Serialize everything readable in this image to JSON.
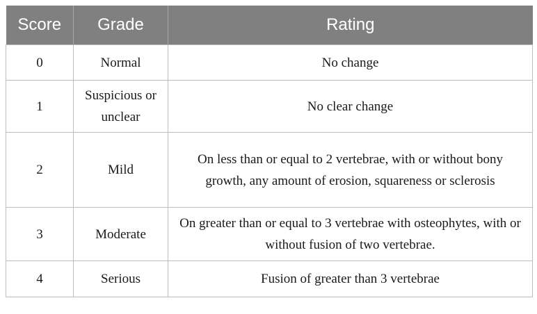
{
  "table": {
    "headers": [
      "Score",
      "Grade",
      "Rating"
    ],
    "rows": [
      {
        "score": "0",
        "grade": "Normal",
        "rating": "No change"
      },
      {
        "score": "1",
        "grade": "Suspicious or unclear",
        "rating": "No clear change"
      },
      {
        "score": "2",
        "grade": "Mild",
        "rating": "On less than or equal to 2 vertebrae, with or without bony growth, any amount of erosion, squareness or sclerosis"
      },
      {
        "score": "3",
        "grade": "Moderate",
        "rating": "On greater than or equal to 3 vertebrae with osteophytes, with or without fusion of two vertebrae."
      },
      {
        "score": "4",
        "grade": "Serious",
        "rating": "Fusion of greater than 3 vertebrae"
      }
    ]
  },
  "colors": {
    "header_background": "#808080",
    "header_text": "#ffffff",
    "border": "#bdbdbd"
  }
}
